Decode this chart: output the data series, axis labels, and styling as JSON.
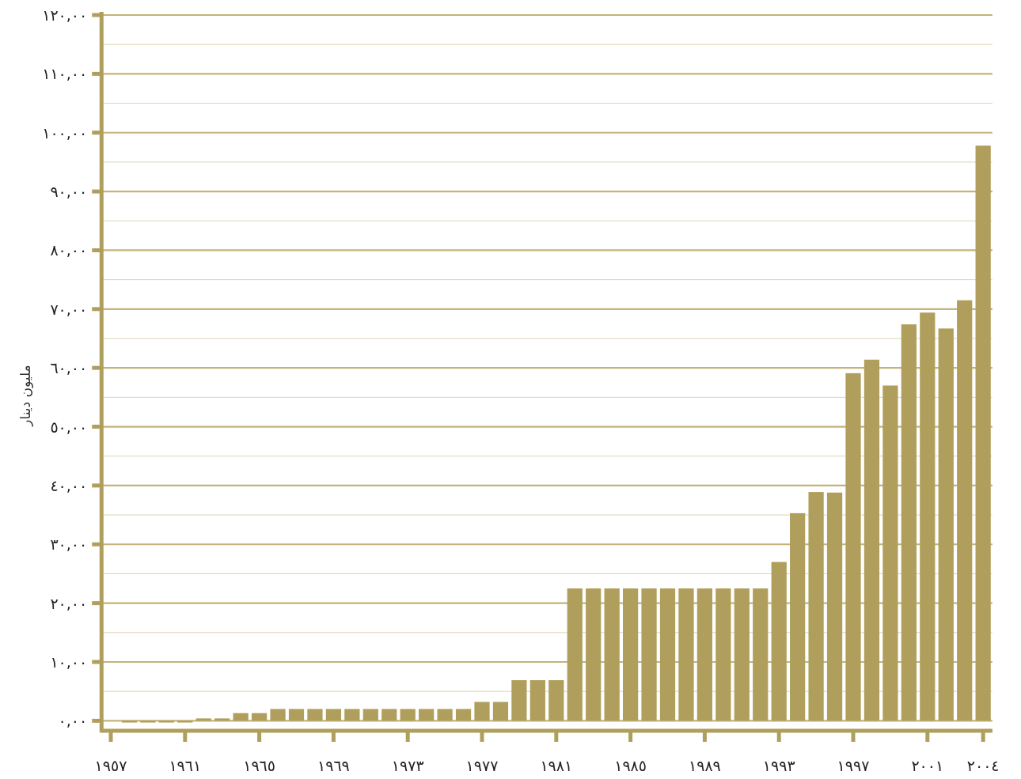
{
  "chart_data": {
    "type": "bar",
    "ylabel": "مليون دينار",
    "categories": [
      "١٩٥٧",
      null,
      null,
      null,
      "١٩٦١",
      null,
      null,
      null,
      "١٩٦٥",
      null,
      null,
      null,
      "١٩٦٩",
      null,
      null,
      null,
      "١٩٧٣",
      null,
      null,
      null,
      "١٩٧٧",
      null,
      null,
      null,
      "١٩٨١",
      null,
      null,
      null,
      "١٩٨٥",
      null,
      null,
      null,
      "١٩٨٩",
      null,
      null,
      null,
      "١٩٩٣",
      null,
      null,
      null,
      "١٩٩٧",
      null,
      null,
      null,
      "٢٠٠١",
      null,
      null,
      "٢٠٠٤"
    ],
    "values": [
      null,
      -0.3,
      -0.3,
      -0.3,
      -0.3,
      0.4,
      0.4,
      1.3,
      1.3,
      2.0,
      2.0,
      2.0,
      2.0,
      2.0,
      2.0,
      2.0,
      2.0,
      2.0,
      2.0,
      2.0,
      3.2,
      3.2,
      6.9,
      6.9,
      6.9,
      22.5,
      22.5,
      22.5,
      22.5,
      22.5,
      22.5,
      22.5,
      22.5,
      22.5,
      22.5,
      22.5,
      27.0,
      35.3,
      38.9,
      38.8,
      59.1,
      61.4,
      57.0,
      67.4,
      69.4,
      66.7,
      71.5,
      97.8
    ],
    "color": "#b09f5c",
    "ylim": [
      -1.7,
      120
    ],
    "yticks": [
      {
        "value": 0,
        "label": "٠,٠٠"
      },
      {
        "value": 5,
        "label": null
      },
      {
        "value": 10,
        "label": "١٠,٠٠"
      },
      {
        "value": 15,
        "label": null
      },
      {
        "value": 20,
        "label": "٢٠,٠٠"
      },
      {
        "value": 25,
        "label": null
      },
      {
        "value": 30,
        "label": "٣٠,٠٠"
      },
      {
        "value": 35,
        "label": null
      },
      {
        "value": 40,
        "label": "٤٠,٠٠"
      },
      {
        "value": 45,
        "label": null
      },
      {
        "value": 50,
        "label": "٥٠,٠٠"
      },
      {
        "value": 55,
        "label": null
      },
      {
        "value": 60,
        "label": "٦٠,٠٠"
      },
      {
        "value": 65,
        "label": null
      },
      {
        "value": 70,
        "label": "٧٠,٠٠"
      },
      {
        "value": 75,
        "label": null
      },
      {
        "value": 80,
        "label": "٨٠,٠٠"
      },
      {
        "value": 85,
        "label": null
      },
      {
        "value": 90,
        "label": "٩٠,٠٠"
      },
      {
        "value": 95,
        "label": null
      },
      {
        "value": 100,
        "label": "١٠٠,٠٠"
      },
      {
        "value": 105,
        "label": null
      },
      {
        "value": 110,
        "label": "١١٠,٠٠"
      },
      {
        "value": 115,
        "label": null
      },
      {
        "value": 120,
        "label": "١٢٠,٠٠"
      }
    ],
    "grid": "y"
  }
}
